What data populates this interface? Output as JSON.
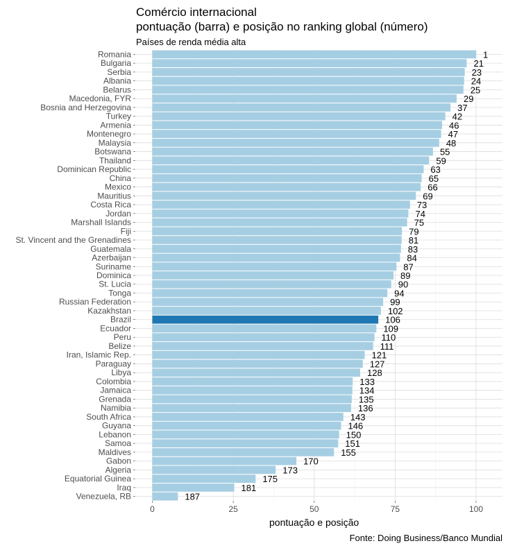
{
  "chart_data": {
    "type": "bar",
    "orientation": "horizontal",
    "title_line1": "Comércio internacional",
    "title_line2": "pontuação (barra) e posição no ranking global (número)",
    "subtitle": "Países de renda média alta",
    "xlabel": "pontuação e posição",
    "caption": "Fonte: Doing Business/Banco Mundial",
    "xlim": [
      0,
      108
    ],
    "xticks": [
      0,
      25,
      50,
      75,
      100
    ],
    "bar_color": "#a6cee3",
    "highlight_color": "#1f78b4",
    "highlight": "Brazil",
    "categories": [
      "Romania",
      "Bulgaria",
      "Serbia",
      "Albania",
      "Belarus",
      "Macedonia, FYR",
      "Bosnia and Herzegovina",
      "Turkey",
      "Armenia",
      "Montenegro",
      "Malaysia",
      "Botswana",
      "Thailand",
      "Dominican Republic",
      "China",
      "Mexico",
      "Mauritius",
      "Costa Rica",
      "Jordan",
      "Marshall Islands",
      "Fiji",
      "St. Vincent and the Grenadines",
      "Guatemala",
      "Azerbaijan",
      "Suriname",
      "Dominica",
      "St. Lucia",
      "Tonga",
      "Russian Federation",
      "Kazakhstan",
      "Brazil",
      "Ecuador",
      "Peru",
      "Belize",
      "Iran, Islamic Rep.",
      "Paraguay",
      "Libya",
      "Colombia",
      "Jamaica",
      "Grenada",
      "Namibia",
      "South Africa",
      "Guyana",
      "Lebanon",
      "Samoa",
      "Maldives",
      "Gabon",
      "Algeria",
      "Equatorial Guinea",
      "Iraq",
      "Venezuela, RB"
    ],
    "values": [
      100,
      97.1,
      96.5,
      96.3,
      96.1,
      94.0,
      92.1,
      90.5,
      89.5,
      89.2,
      88.6,
      86.7,
      85.5,
      83.8,
      83.2,
      82.9,
      81.4,
      79.6,
      79.1,
      78.7,
      77.1,
      77.0,
      76.8,
      76.5,
      75.4,
      74.5,
      73.8,
      72.6,
      71.3,
      70.6,
      69.8,
      69.2,
      68.6,
      68.2,
      65.6,
      65.0,
      64.2,
      61.9,
      61.8,
      61.6,
      61.4,
      59.0,
      58.3,
      57.7,
      57.4,
      56.1,
      44.5,
      38.1,
      31.9,
      25.3,
      7.9
    ],
    "ranks": [
      "1",
      "21",
      "23",
      "24",
      "25",
      "29",
      "37",
      "42",
      "46",
      "47",
      "48",
      "55",
      "59",
      "63",
      "65",
      "66",
      "69",
      "73",
      "74",
      "75",
      "79",
      "81",
      "83",
      "84",
      "87",
      "89",
      "90",
      "94",
      "99",
      "102",
      "106",
      "109",
      "110",
      "111",
      "121",
      "127",
      "128",
      "133",
      "134",
      "135",
      "136",
      "143",
      "146",
      "150",
      "151",
      "155",
      "170",
      "173",
      "175",
      "181",
      "187"
    ]
  }
}
